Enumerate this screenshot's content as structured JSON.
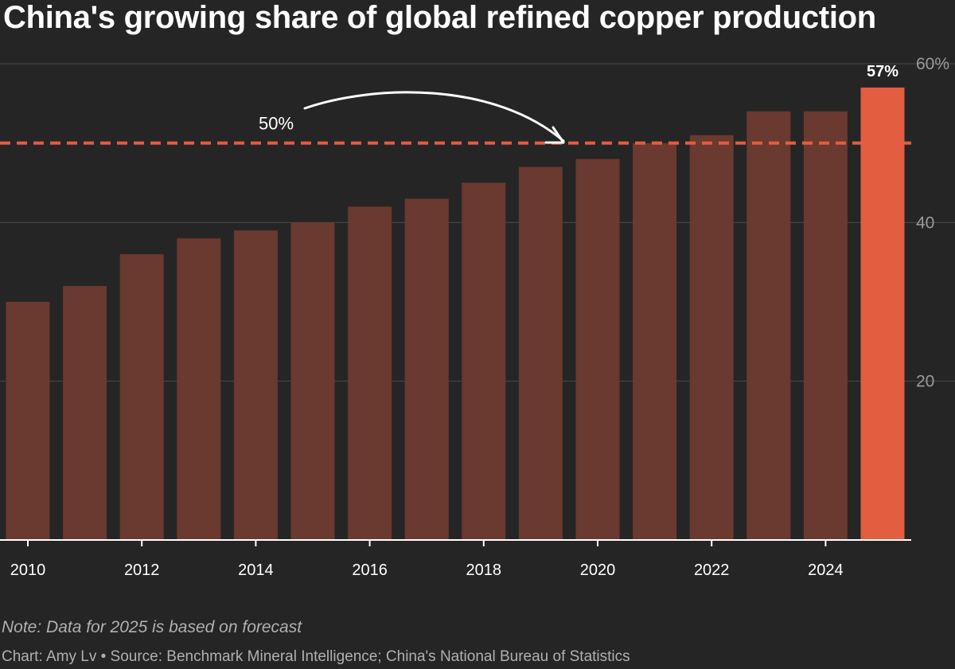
{
  "chart_data": {
    "type": "bar",
    "title": "China's growing share of global refined copper production",
    "categories": [
      "2010",
      "2011",
      "2012",
      "2013",
      "2014",
      "2015",
      "2016",
      "2017",
      "2018",
      "2019",
      "2020",
      "2021",
      "2022",
      "2023",
      "2024",
      "2025"
    ],
    "values": [
      30,
      32,
      36,
      38,
      39,
      40,
      42,
      43,
      45,
      47,
      48,
      50,
      51,
      54,
      54,
      57
    ],
    "x_tick_labels": [
      "2010",
      "2012",
      "2014",
      "2016",
      "2018",
      "2020",
      "2022",
      "2024"
    ],
    "y_ticks": [
      20,
      40,
      60
    ],
    "y_tick_labels": [
      "20",
      "40",
      "60%"
    ],
    "ylim": [
      0,
      60
    ],
    "xlabel": "",
    "ylabel": "",
    "highlight": {
      "category": "2025",
      "label": "57%"
    },
    "reference_line": {
      "value": 50,
      "label": "50%"
    },
    "grid": true,
    "y_axis_side": "right",
    "colors": {
      "bar": "#6a392f",
      "highlight_bar": "#e35d40",
      "reference_line": "#e35d40",
      "grid": "#4a4a4a",
      "axis": "#ffffff",
      "tick_text": "#ffffff",
      "y_tick_text": "#9a9a9a",
      "annotation": "#ffffff",
      "background": "#252525"
    }
  },
  "note": "Note: Data for 2025 is based on forecast",
  "credit": "Chart: Amy Lv • Source: Benchmark Mineral Intelligence; China's National Bureau of Statistics"
}
